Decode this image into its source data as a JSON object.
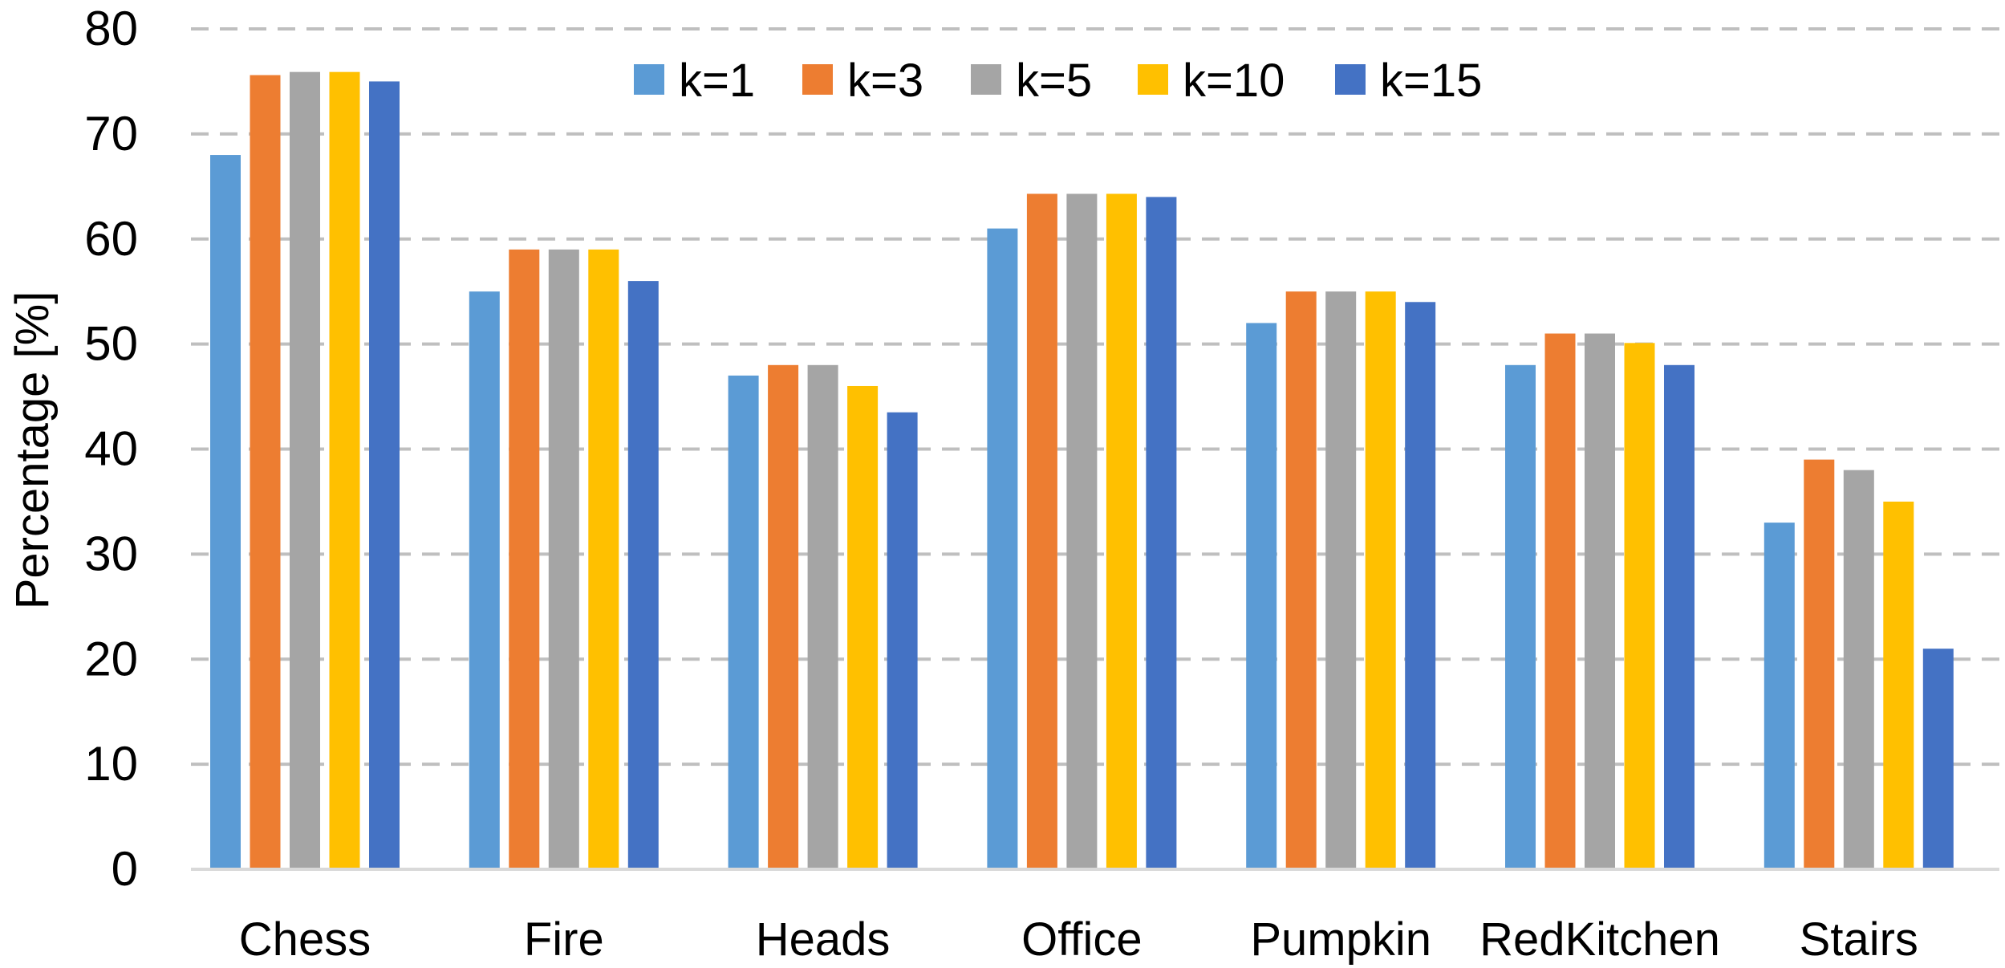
{
  "chart_data": {
    "type": "bar",
    "title": "",
    "xlabel": "",
    "ylabel": "Percentage [%]",
    "ylim": [
      0,
      80
    ],
    "yticks": [
      "0",
      "10",
      "20",
      "30",
      "40",
      "50",
      "60",
      "70",
      "80"
    ],
    "grid": true,
    "legend_position": "top-center",
    "categories": [
      "Chess",
      "Fire",
      "Heads",
      "Office",
      "Pumpkin",
      "RedKitchen",
      "Stairs"
    ],
    "series": [
      {
        "name": "k=1",
        "color": "#5B9BD5",
        "values": [
          68,
          55,
          47,
          61,
          52,
          48,
          33
        ]
      },
      {
        "name": "k=3",
        "color": "#ED7D31",
        "values": [
          75.6,
          59,
          48,
          64.3,
          55,
          51,
          39
        ]
      },
      {
        "name": "k=5",
        "color": "#A5A5A5",
        "values": [
          75.9,
          59,
          48,
          64.3,
          55,
          51,
          38
        ]
      },
      {
        "name": "k=10",
        "color": "#FFC000",
        "values": [
          75.9,
          59,
          46,
          64.3,
          55,
          50.1,
          35
        ]
      },
      {
        "name": "k=15",
        "color": "#4472C4",
        "values": [
          75,
          56,
          43.5,
          64,
          54,
          48,
          21
        ]
      }
    ]
  }
}
